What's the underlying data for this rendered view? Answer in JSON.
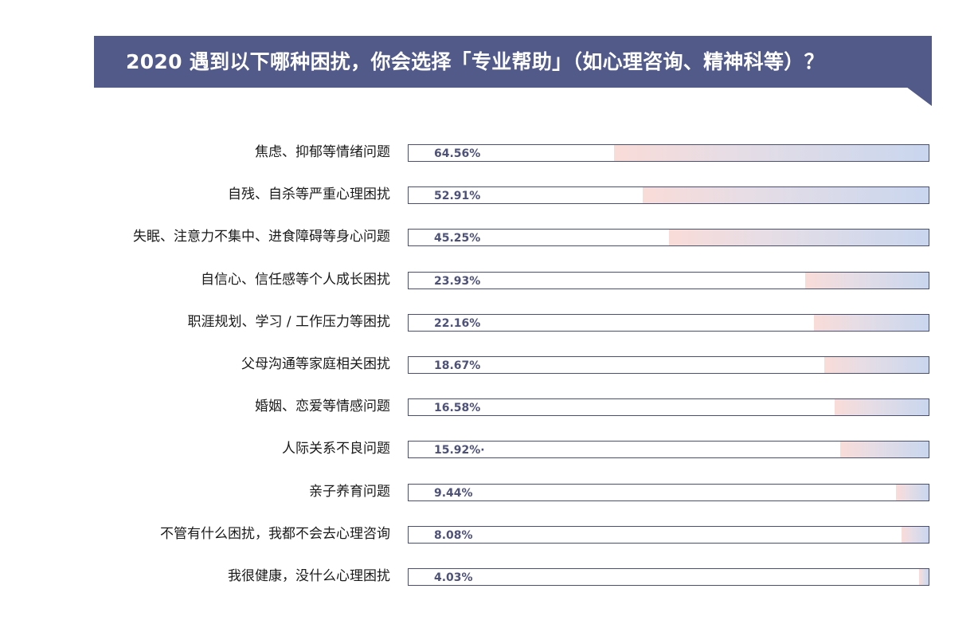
{
  "header": {
    "title": "2020 遇到以下哪种困扰，你会选择「专业帮助」（如心理咨询、精神科等）？",
    "banner_color": "#525a8a"
  },
  "rows": [
    {
      "label": "焦虑、抑郁等情绪问题",
      "value_text": "64.56%",
      "fill_pct": 60.5
    },
    {
      "label": "自残、自杀等严重心理困扰",
      "value_text": "52.91%",
      "fill_pct": 55.0
    },
    {
      "label": "失眠、注意力不集中、进食障碍等身心问题",
      "value_text": "45.25%",
      "fill_pct": 50.0
    },
    {
      "label": "自信心、信任感等个人成长困扰",
      "value_text": "23.93%",
      "fill_pct": 23.7
    },
    {
      "label": "职涯规划、学习 / 工作压力等困扰",
      "value_text": "22.16%",
      "fill_pct": 22.0
    },
    {
      "label": "父母沟通等家庭相关困扰",
      "value_text": "18.67%",
      "fill_pct": 20.0
    },
    {
      "label": "婚姻、恋爱等情感问题",
      "value_text": "16.58%",
      "fill_pct": 18.0
    },
    {
      "label": "人际关系不良问题",
      "value_text": "15.92%·",
      "fill_pct": 17.0
    },
    {
      "label": "亲子养育问题",
      "value_text": "9.44%",
      "fill_pct": 6.3
    },
    {
      "label": "不管有什么困扰，我都不会去心理咨询",
      "value_text": "8.08%",
      "fill_pct": 5.2
    },
    {
      "label": "我很健康，没什么心理困扰",
      "value_text": "4.03%",
      "fill_pct": 1.8
    }
  ],
  "colors": {
    "bar_border": "#4a4f70",
    "value_text": "#4e5278",
    "gradient_start": "#f9dcd8",
    "gradient_end": "#c9d6ee"
  },
  "chart_data": {
    "type": "bar",
    "orientation": "horizontal",
    "title": "2020 遇到以下哪种困扰，你会选择「专业帮助」（如心理咨询、精神科等）？",
    "xlabel": "",
    "ylabel": "",
    "categories": [
      "焦虑、抑郁等情绪问题",
      "自残、自杀等严重心理困扰",
      "失眠、注意力不集中、进食障碍等身心问题",
      "自信心、信任感等个人成长困扰",
      "职涯规划、学习 / 工作压力等困扰",
      "父母沟通等家庭相关困扰",
      "婚姻、恋爱等情感问题",
      "人际关系不良问题",
      "亲子养育问题",
      "不管有什么困扰，我都不会去心理咨询",
      "我很健康，没什么心理困扰"
    ],
    "values": [
      64.56,
      52.91,
      45.25,
      23.93,
      22.16,
      18.67,
      16.58,
      15.92,
      9.44,
      8.08,
      4.03
    ],
    "unit": "%",
    "grid": false,
    "legend": "none",
    "note": "Rendered bar fill lengths in the source image are not strictly proportional to the labeled percentages (e.g. 9.44% fills ~6% of the box, 4.03% fills ~2%). values[] holds the labeled data; rows[].fill_pct reproduces the image's bar geometry."
  }
}
